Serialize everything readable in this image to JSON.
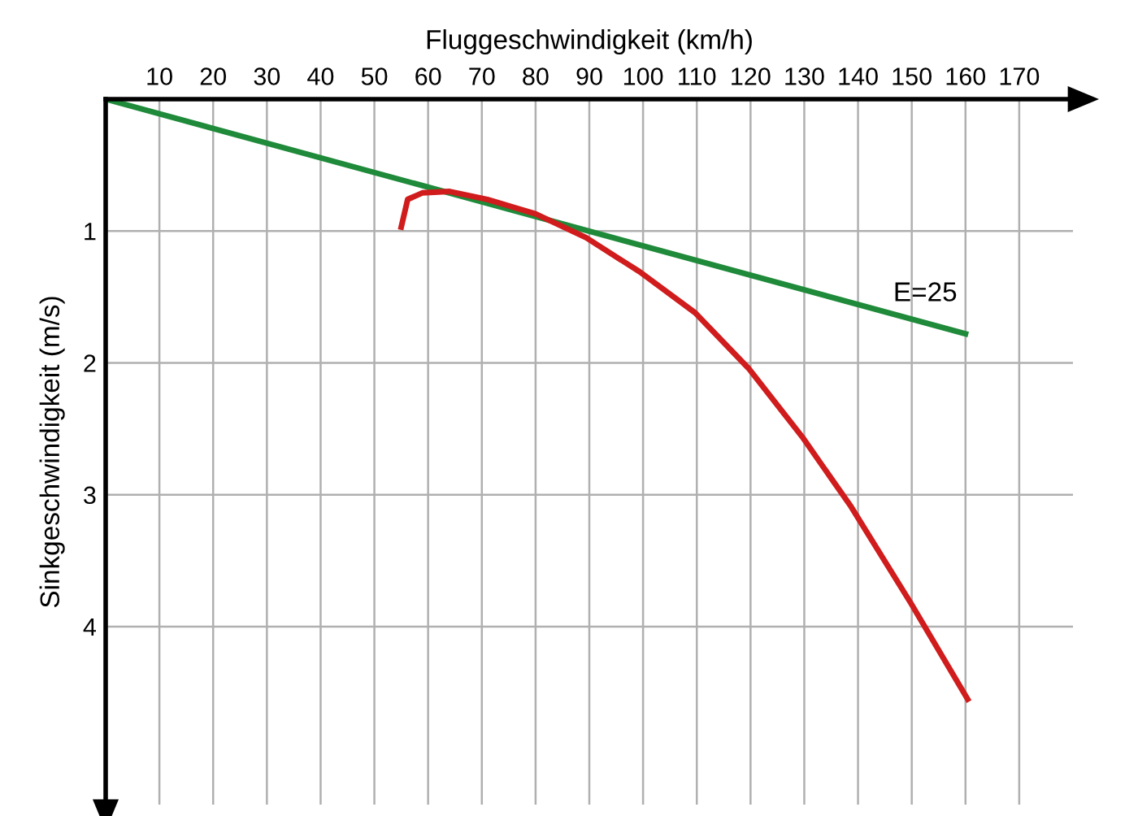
{
  "chart_data": {
    "type": "line",
    "xlabel": "Fluggeschwindigkeit (km/h)",
    "ylabel": "Sinkgeschwindigkeit (m/s)",
    "xlim": [
      0,
      180
    ],
    "ylim": [
      5.35,
      0
    ],
    "xticks": [
      10,
      20,
      30,
      40,
      50,
      60,
      70,
      80,
      90,
      100,
      110,
      120,
      130,
      140,
      150,
      160,
      170
    ],
    "yticks": [
      1,
      2,
      3,
      4
    ],
    "grid": true,
    "legend": false,
    "marker": "none",
    "line_style": "solid",
    "series": [
      {
        "name": "E=25",
        "color": "#1f8a3a",
        "x": [
          0,
          160
        ],
        "values": [
          0,
          1.78
        ]
      },
      {
        "color": "#d01c1c",
        "x": [
          55,
          56.2,
          59,
          64,
          71,
          80,
          89.4,
          99.4,
          109.7,
          119.6,
          129.6,
          138.7,
          149.8,
          160.4
        ],
        "values": [
          0.97,
          0.76,
          0.71,
          0.7,
          0.76,
          0.87,
          1.05,
          1.31,
          1.62,
          2.04,
          2.56,
          3.09,
          3.82,
          4.55
        ]
      }
    ]
  }
}
